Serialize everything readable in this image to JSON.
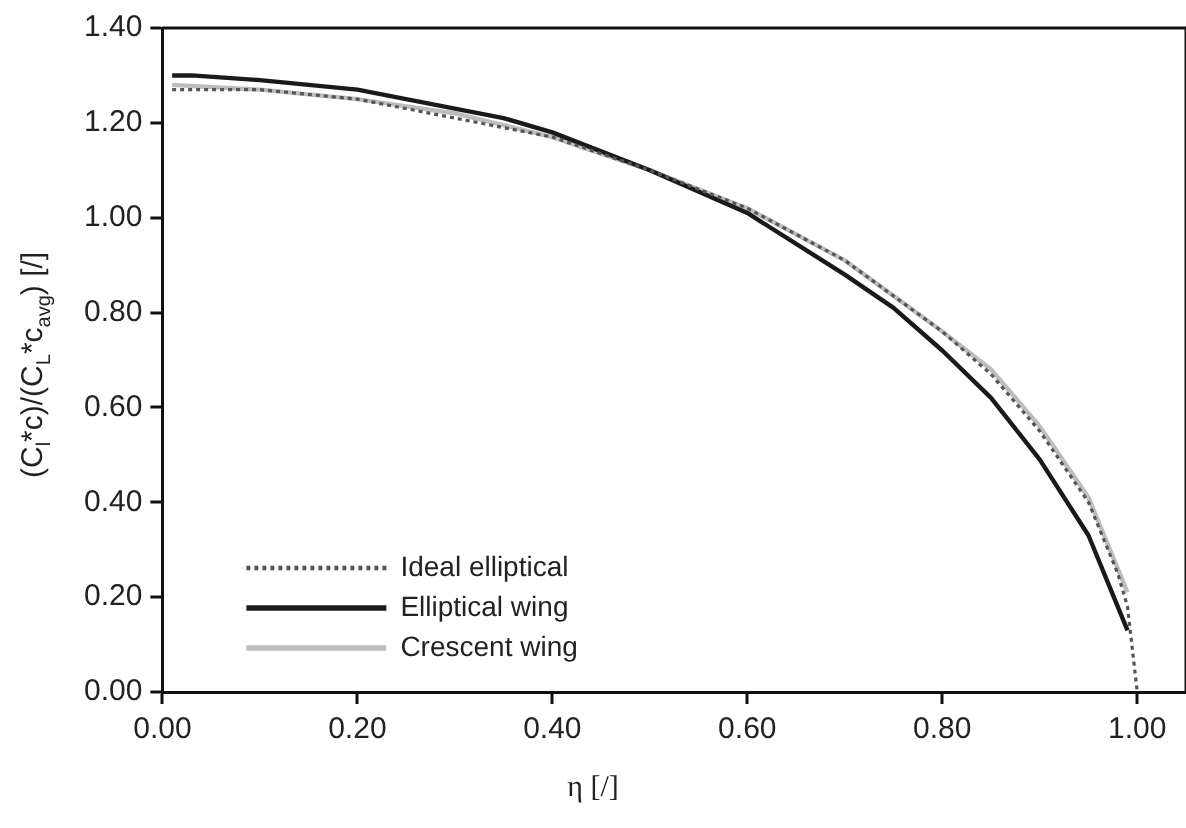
{
  "chart_data": {
    "type": "line",
    "xlabel": "η [/]",
    "ylabel": "(C$_{l}$*c)/(C$_{L}$*c$_{avg}$) [/]",
    "xlim": [
      0,
      1.05
    ],
    "xticks": [
      {
        "value": 0,
        "label": "0.00"
      },
      {
        "value": 0.2,
        "label": "0.20"
      },
      {
        "value": 0.4,
        "label": "0.40"
      },
      {
        "value": 0.6,
        "label": "0.60"
      },
      {
        "value": 0.8,
        "label": "0.80"
      },
      {
        "value": 1,
        "label": "1.00"
      }
    ],
    "ylim": [
      0,
      1.4
    ],
    "yticks": [
      {
        "value": 0,
        "label": "0.00"
      },
      {
        "value": 0.2,
        "label": "0.20"
      },
      {
        "value": 0.4,
        "label": "0.40"
      },
      {
        "value": 0.6,
        "label": "0.60"
      },
      {
        "value": 0.8,
        "label": "0.80"
      },
      {
        "value": 1,
        "label": "1.00"
      },
      {
        "value": 1.2,
        "label": "1.20"
      },
      {
        "value": 1.4,
        "label": "1.40"
      }
    ],
    "grid": false,
    "legend": "bottom left",
    "marker": "none",
    "series": [
      {
        "name": "Ideal elliptical",
        "color": "#555555",
        "line_style": "dotted",
        "x": [
          0.01,
          0.1,
          0.2,
          0.3,
          0.4,
          0.5,
          0.6,
          0.7,
          0.8,
          0.85,
          0.9,
          0.95,
          0.98,
          0.99,
          1.0
        ],
        "values": [
          1.27,
          1.27,
          1.25,
          1.21,
          1.17,
          1.1,
          1.02,
          0.91,
          0.76,
          0.67,
          0.55,
          0.4,
          0.25,
          0.18,
          0.0
        ]
      },
      {
        "name": "Elliptical wing",
        "color": "#1a1a1a",
        "line_style": "solid",
        "x": [
          0.01,
          0.03,
          0.1,
          0.2,
          0.3,
          0.35,
          0.4,
          0.5,
          0.6,
          0.7,
          0.75,
          0.8,
          0.85,
          0.9,
          0.95,
          0.99
        ],
        "values": [
          1.3,
          1.3,
          1.29,
          1.27,
          1.23,
          1.21,
          1.18,
          1.1,
          1.01,
          0.88,
          0.81,
          0.72,
          0.62,
          0.49,
          0.33,
          0.13
        ]
      },
      {
        "name": "Crescent wing",
        "color": "#bdbdbd",
        "line_style": "solid",
        "x": [
          0.01,
          0.1,
          0.2,
          0.3,
          0.4,
          0.5,
          0.6,
          0.7,
          0.8,
          0.85,
          0.9,
          0.95,
          0.99
        ],
        "values": [
          1.28,
          1.27,
          1.25,
          1.22,
          1.17,
          1.1,
          1.02,
          0.91,
          0.76,
          0.68,
          0.56,
          0.41,
          0.21
        ]
      }
    ]
  }
}
